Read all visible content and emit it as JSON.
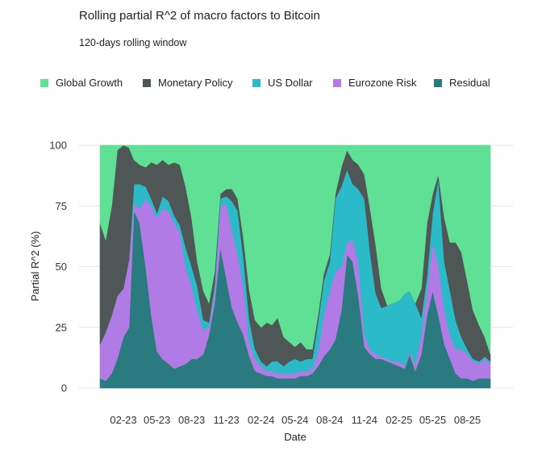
{
  "chart_data": {
    "type": "area",
    "stacked": true,
    "title": "Rolling partial R^2 of macro factors to Bitcoin",
    "subtitle": "120-days rolling window",
    "xlabel": "Date",
    "ylabel": "Partial R^2 (%)",
    "ylim": [
      0,
      100
    ],
    "yticks": [
      "0",
      "25",
      "50",
      "75",
      "100"
    ],
    "xticks": [
      "02-23",
      "05-23",
      "08-23",
      "11-23",
      "02-24",
      "05-24",
      "08-24",
      "11-24",
      "02-25",
      "05-25",
      "08-25"
    ],
    "x_range": [
      "2022-12",
      "2025-10"
    ],
    "grid": "horizontal",
    "legend_position": "top",
    "x": [
      "2022-12-01",
      "2022-12-16",
      "2023-01-01",
      "2023-01-16",
      "2023-02-01",
      "2023-02-16",
      "2023-03-01",
      "2023-03-16",
      "2023-04-01",
      "2023-04-16",
      "2023-05-01",
      "2023-05-16",
      "2023-06-01",
      "2023-06-16",
      "2023-07-01",
      "2023-07-16",
      "2023-08-01",
      "2023-08-16",
      "2023-09-01",
      "2023-09-16",
      "2023-10-01",
      "2023-10-16",
      "2023-11-01",
      "2023-11-16",
      "2023-12-01",
      "2023-12-16",
      "2024-01-01",
      "2024-01-16",
      "2024-02-01",
      "2024-02-16",
      "2024-03-01",
      "2024-03-16",
      "2024-04-01",
      "2024-04-16",
      "2024-05-01",
      "2024-05-16",
      "2024-06-01",
      "2024-06-16",
      "2024-07-01",
      "2024-07-16",
      "2024-08-01",
      "2024-08-16",
      "2024-09-01",
      "2024-09-16",
      "2024-10-01",
      "2024-10-16",
      "2024-11-01",
      "2024-11-16",
      "2024-12-01",
      "2024-12-16",
      "2025-01-01",
      "2025-01-16",
      "2025-02-01",
      "2025-02-16",
      "2025-03-01",
      "2025-03-16",
      "2025-04-01",
      "2025-04-16",
      "2025-05-01",
      "2025-05-16",
      "2025-06-01",
      "2025-06-16",
      "2025-07-01",
      "2025-07-16",
      "2025-08-01",
      "2025-08-16",
      "2025-09-01",
      "2025-09-16",
      "2025-10-01"
    ],
    "series": [
      {
        "name": "Residual",
        "color": "#2a7b7f",
        "values": [
          4,
          3,
          6,
          12,
          21,
          25,
          73,
          68,
          50,
          30,
          15,
          12,
          10,
          8,
          9,
          10,
          12,
          12,
          14,
          22,
          35,
          58,
          45,
          33,
          27,
          22,
          13,
          7,
          6,
          5,
          5,
          4,
          4,
          4,
          4,
          5,
          5,
          6,
          9,
          13,
          16,
          20,
          32,
          55,
          52,
          38,
          17,
          14,
          12,
          12,
          11,
          10,
          9,
          8,
          14,
          7,
          14,
          30,
          40,
          30,
          18,
          12,
          6,
          4,
          4,
          3,
          4,
          4,
          4
        ]
      },
      {
        "name": "Eurozone Risk",
        "color": "#b07be4",
        "values": [
          14,
          20,
          24,
          26,
          20,
          28,
          3,
          6,
          28,
          45,
          55,
          62,
          63,
          60,
          55,
          40,
          30,
          20,
          10,
          3,
          5,
          17,
          31,
          32,
          28,
          20,
          6,
          5,
          3,
          2,
          2,
          2,
          2,
          2,
          2,
          2,
          2,
          2,
          6,
          17,
          24,
          28,
          18,
          5,
          9,
          14,
          5,
          2,
          2,
          1,
          1,
          1,
          2,
          1,
          1,
          3,
          8,
          10,
          20,
          21,
          14,
          10,
          10,
          12,
          10,
          8,
          6,
          8,
          6
        ]
      },
      {
        "name": "US Dollar",
        "color": "#2bbac7",
        "values": [
          0,
          0,
          0,
          0,
          0,
          0,
          8,
          10,
          5,
          3,
          2,
          5,
          4,
          3,
          3,
          8,
          8,
          10,
          4,
          2,
          3,
          3,
          3,
          12,
          18,
          12,
          9,
          4,
          2,
          2,
          4,
          5,
          3,
          5,
          6,
          4,
          5,
          4,
          12,
          14,
          12,
          30,
          33,
          30,
          23,
          30,
          56,
          40,
          25,
          20,
          22,
          24,
          25,
          30,
          25,
          25,
          7,
          6,
          12,
          35,
          20,
          18,
          12,
          5,
          2,
          1,
          1,
          1,
          1
        ]
      },
      {
        "name": "Monetary Policy",
        "color": "#4e5656",
        "values": [
          50,
          38,
          45,
          60,
          59,
          46,
          10,
          8,
          8,
          15,
          20,
          15,
          15,
          22,
          25,
          25,
          20,
          10,
          12,
          8,
          5,
          2,
          3,
          5,
          5,
          8,
          12,
          12,
          14,
          18,
          15,
          18,
          12,
          8,
          5,
          8,
          4,
          4,
          3,
          3,
          3,
          2,
          8,
          8,
          10,
          10,
          10,
          18,
          20,
          8,
          0,
          0,
          0,
          0,
          0,
          0,
          12,
          22,
          8,
          2,
          18,
          20,
          32,
          35,
          28,
          20,
          15,
          8,
          3
        ]
      },
      {
        "name": "Global Growth",
        "color": "#5fe094",
        "values": [
          32,
          39,
          25,
          2,
          0,
          1,
          6,
          8,
          9,
          7,
          8,
          6,
          8,
          7,
          8,
          17,
          30,
          48,
          60,
          65,
          52,
          20,
          18,
          18,
          22,
          38,
          60,
          72,
          75,
          73,
          74,
          71,
          79,
          81,
          83,
          81,
          84,
          84,
          70,
          53,
          45,
          20,
          9,
          2,
          6,
          8,
          12,
          26,
          41,
          59,
          66,
          65,
          64,
          61,
          60,
          65,
          59,
          32,
          20,
          12,
          30,
          40,
          40,
          44,
          56,
          68,
          74,
          79,
          86
        ]
      }
    ]
  }
}
